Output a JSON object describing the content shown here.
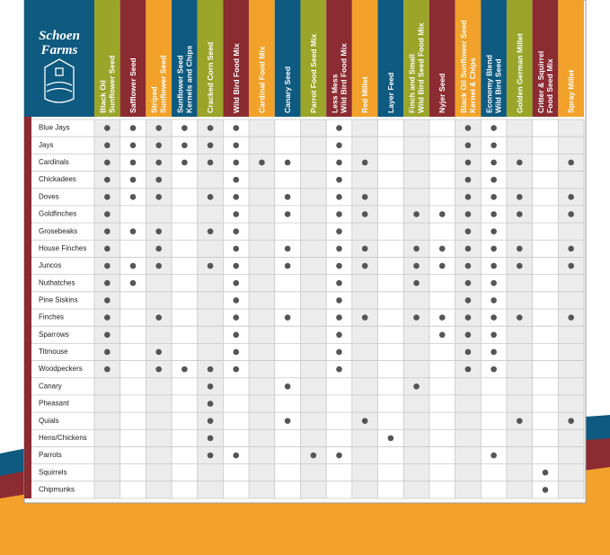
{
  "header": {
    "logo_lines": [
      "Schoen",
      "Farms"
    ]
  },
  "columns": [
    {
      "lines": [
        "Black Oil",
        "Sunflower Seed"
      ],
      "color": "#9aa52a"
    },
    {
      "lines": [
        "Safflower Seed"
      ],
      "color": "#8b2b32"
    },
    {
      "lines": [
        "Striped",
        "Sunflower Seed"
      ],
      "color": "#f2a22a"
    },
    {
      "lines": [
        "Sunflower Seed",
        "Kernels and Chips"
      ],
      "color": "#0e5a80"
    },
    {
      "lines": [
        "Cracked Corn Seed"
      ],
      "color": "#9aa52a"
    },
    {
      "lines": [
        "Wild Bird Food Mix"
      ],
      "color": "#8b2b32"
    },
    {
      "lines": [
        "Cardinal Food Mix"
      ],
      "color": "#f2a22a"
    },
    {
      "lines": [
        "Canary Seed"
      ],
      "color": "#0e5a80"
    },
    {
      "lines": [
        "Parrot Food Seed Mix"
      ],
      "color": "#9aa52a"
    },
    {
      "lines": [
        "Less Mess",
        "Wild Bird Food Mix"
      ],
      "color": "#8b2b32"
    },
    {
      "lines": [
        "Red Millet"
      ],
      "color": "#f2a22a"
    },
    {
      "lines": [
        "Layer Feed"
      ],
      "color": "#0e5a80"
    },
    {
      "lines": [
        "Finch and Small",
        "Wild Bird Seed Food Mix"
      ],
      "color": "#9aa52a"
    },
    {
      "lines": [
        "Nyjer Seed"
      ],
      "color": "#8b2b32"
    },
    {
      "lines": [
        "Black Oil Sunflower Seed",
        "Kernel & Chips"
      ],
      "color": "#f2a22a"
    },
    {
      "lines": [
        "Economy Blend",
        "Wild Bird Seed"
      ],
      "color": "#0e5a80"
    },
    {
      "lines": [
        "Golden German Millet"
      ],
      "color": "#9aa52a"
    },
    {
      "lines": [
        "Critter & Squirrel",
        "Food Seed Mix"
      ],
      "color": "#8b2b32"
    },
    {
      "lines": [
        "Spray Millet"
      ],
      "color": "#f2a22a"
    }
  ],
  "rows": [
    {
      "label": "Blue Jays",
      "feeds": [
        true,
        true,
        true,
        true,
        true,
        true,
        false,
        false,
        false,
        true,
        false,
        false,
        false,
        false,
        true,
        true,
        false,
        false,
        false
      ]
    },
    {
      "label": "Jays",
      "feeds": [
        true,
        true,
        true,
        true,
        true,
        true,
        false,
        false,
        false,
        true,
        false,
        false,
        false,
        false,
        true,
        true,
        false,
        false,
        false
      ]
    },
    {
      "label": "Cardinals",
      "feeds": [
        true,
        true,
        true,
        true,
        true,
        true,
        true,
        true,
        false,
        true,
        true,
        false,
        false,
        false,
        true,
        true,
        true,
        false,
        true
      ]
    },
    {
      "label": "Chickadees",
      "feeds": [
        true,
        true,
        true,
        false,
        false,
        true,
        false,
        false,
        false,
        true,
        false,
        false,
        false,
        false,
        true,
        true,
        false,
        false,
        false
      ]
    },
    {
      "label": "Doves",
      "feeds": [
        true,
        true,
        true,
        false,
        true,
        true,
        false,
        true,
        false,
        true,
        true,
        false,
        false,
        false,
        true,
        true,
        true,
        false,
        true
      ]
    },
    {
      "label": "Goldfinches",
      "feeds": [
        true,
        false,
        false,
        false,
        false,
        true,
        false,
        true,
        false,
        true,
        true,
        false,
        true,
        true,
        true,
        true,
        true,
        false,
        true
      ]
    },
    {
      "label": "Grosebeaks",
      "feeds": [
        true,
        true,
        true,
        false,
        true,
        true,
        false,
        false,
        false,
        true,
        false,
        false,
        false,
        false,
        true,
        true,
        false,
        false,
        false
      ]
    },
    {
      "label": "House Finches",
      "feeds": [
        true,
        false,
        true,
        false,
        false,
        true,
        false,
        true,
        false,
        true,
        true,
        false,
        true,
        true,
        true,
        true,
        true,
        false,
        true
      ]
    },
    {
      "label": "Juncos",
      "feeds": [
        true,
        true,
        true,
        false,
        true,
        true,
        false,
        true,
        false,
        true,
        true,
        false,
        true,
        true,
        true,
        true,
        true,
        false,
        true
      ]
    },
    {
      "label": "Nuthatches",
      "feeds": [
        true,
        true,
        false,
        false,
        false,
        true,
        false,
        false,
        false,
        true,
        false,
        false,
        true,
        false,
        true,
        true,
        false,
        false,
        false
      ]
    },
    {
      "label": "Pine Siskins",
      "feeds": [
        true,
        false,
        false,
        false,
        false,
        true,
        false,
        false,
        false,
        true,
        false,
        false,
        false,
        false,
        true,
        true,
        false,
        false,
        false
      ]
    },
    {
      "label": "Finches",
      "feeds": [
        true,
        false,
        true,
        false,
        false,
        true,
        false,
        true,
        false,
        true,
        true,
        false,
        true,
        true,
        true,
        true,
        true,
        false,
        true
      ]
    },
    {
      "label": "Sparrows",
      "feeds": [
        true,
        false,
        false,
        false,
        false,
        true,
        false,
        false,
        false,
        true,
        false,
        false,
        false,
        true,
        true,
        true,
        false,
        false,
        false
      ]
    },
    {
      "label": "Titmouse",
      "feeds": [
        true,
        false,
        true,
        false,
        false,
        true,
        false,
        false,
        false,
        true,
        false,
        false,
        false,
        false,
        true,
        true,
        false,
        false,
        false
      ]
    },
    {
      "label": "Woodpeckers",
      "feeds": [
        true,
        false,
        true,
        true,
        true,
        true,
        false,
        false,
        false,
        true,
        false,
        false,
        false,
        false,
        true,
        true,
        false,
        false,
        false
      ]
    },
    {
      "label": "Canary",
      "feeds": [
        false,
        false,
        false,
        false,
        true,
        false,
        false,
        true,
        false,
        false,
        false,
        false,
        true,
        false,
        false,
        false,
        false,
        false,
        false
      ]
    },
    {
      "label": "Pheasant",
      "feeds": [
        false,
        false,
        false,
        false,
        true,
        false,
        false,
        false,
        false,
        false,
        false,
        false,
        false,
        false,
        false,
        false,
        false,
        false,
        false
      ]
    },
    {
      "label": "Quials",
      "feeds": [
        false,
        false,
        false,
        false,
        true,
        false,
        false,
        true,
        false,
        false,
        true,
        false,
        false,
        false,
        false,
        false,
        true,
        false,
        true
      ]
    },
    {
      "label": "Hens/Chickens",
      "feeds": [
        false,
        false,
        false,
        false,
        true,
        false,
        false,
        false,
        false,
        false,
        false,
        true,
        false,
        false,
        false,
        false,
        false,
        false,
        false
      ]
    },
    {
      "label": "Parrots",
      "feeds": [
        false,
        false,
        false,
        false,
        true,
        true,
        false,
        false,
        true,
        true,
        false,
        false,
        false,
        false,
        false,
        true,
        false,
        false,
        false
      ]
    },
    {
      "label": "Squirrels",
      "feeds": [
        false,
        false,
        false,
        false,
        false,
        false,
        false,
        false,
        false,
        false,
        false,
        false,
        false,
        false,
        false,
        false,
        false,
        true,
        false
      ]
    },
    {
      "label": "Chipmunks",
      "feeds": [
        false,
        false,
        false,
        false,
        false,
        false,
        false,
        false,
        false,
        false,
        false,
        false,
        false,
        false,
        false,
        false,
        false,
        true,
        false
      ]
    }
  ]
}
